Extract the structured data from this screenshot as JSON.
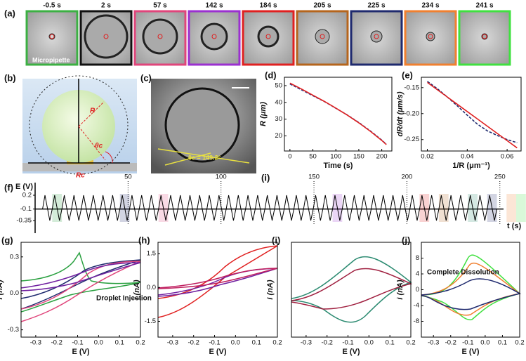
{
  "figure": {
    "a": {
      "label": "(a)",
      "frames": [
        "-0.5 s",
        "2 s",
        "57 s",
        "142 s",
        "184 s",
        "205 s",
        "225 s",
        "234 s",
        "241 s"
      ],
      "pointer": "Micropipette"
    },
    "b": {
      "label": "(b)",
      "radius": "R",
      "angle": "θc",
      "contact": "Rc"
    },
    "c": {
      "label": "(c)",
      "angle_text": "θc = 149.2°"
    },
    "f": {
      "label": "(f)",
      "ylabel": "E (V)",
      "xlabel": "t (s)",
      "inset": "(i)",
      "xlim": [
        0,
        255
      ],
      "xticks": [
        50,
        100,
        150,
        200,
        250
      ],
      "ylim": [
        -0.35,
        0.2
      ],
      "yticks": [
        0.2,
        -0.1,
        -0.35
      ]
    },
    "cv": [
      {
        "label": "(g)",
        "xlabel": "E (V)",
        "ylabel": "i (nA)",
        "xlim": [
          -0.37,
          0.2
        ],
        "ylim": [
          -0.36,
          0.42
        ],
        "xticks": [
          -0.3,
          -0.2,
          -0.1,
          {
            "value": 0,
            "label": "0.0"
          },
          0.1,
          0.2
        ],
        "yticks": [
          -0.3,
          {
            "value": 0,
            "label": "0.0"
          },
          0.3
        ],
        "annotation": "Droplet Injection"
      },
      {
        "label": "(h)",
        "xlabel": "E (V)",
        "ylabel": "i (nA)",
        "xlim": [
          -0.37,
          0.2
        ],
        "ylim": [
          -2.2,
          2.0
        ],
        "xticks": [
          -0.3,
          -0.2,
          -0.1,
          {
            "value": 0,
            "label": "0.0"
          },
          0.1,
          0.2
        ],
        "yticks": [
          -1.5,
          {
            "value": 0,
            "label": "0.0"
          },
          1.5
        ]
      },
      {
        "label": "(i)",
        "xlabel": "E (V)",
        "ylabel": "i (nA)",
        "xlim": [
          -0.37,
          0.2
        ],
        "ylim": [
          -1,
          1
        ],
        "xticks": [
          -0.3,
          -0.2,
          -0.1,
          {
            "value": 0,
            "label": "0.0"
          },
          0.1,
          0.2
        ],
        "yticks": []
      },
      {
        "label": "(j)",
        "xlabel": "E (V)",
        "ylabel": "i (nA)",
        "xlim": [
          -0.37,
          0.2
        ],
        "ylim": [
          -12,
          12
        ],
        "xticks": [
          -0.3,
          -0.2,
          -0.1,
          {
            "value": 0,
            "label": "0.0"
          },
          0.1,
          0.2
        ],
        "yticks": [
          -8,
          -4,
          0,
          4,
          8
        ],
        "annotation": "Complete Dissolution"
      }
    ]
  },
  "chart_data": [
    {
      "type": "line",
      "label": "(d)",
      "xlabel": "Time (s)",
      "ylabel": "R (μm)",
      "x": [
        0,
        25,
        50,
        75,
        100,
        125,
        150,
        175,
        200,
        210
      ],
      "series": [
        {
          "color": "#1f3b8c",
          "values": [
            51,
            47.5,
            44,
            40.5,
            36.5,
            32.5,
            28,
            23,
            17.5,
            15
          ]
        },
        {
          "color": "#e02020",
          "values": [
            51.5,
            48,
            44.3,
            40.6,
            36.6,
            32.4,
            27.8,
            22.8,
            17.3,
            14.8
          ]
        }
      ],
      "xlim": [
        -12,
        222
      ],
      "xticks": [
        0,
        50,
        100,
        150,
        200
      ],
      "ylim": [
        11,
        55
      ],
      "yticks": [
        20,
        30,
        40,
        50
      ]
    },
    {
      "type": "line",
      "label": "(e)",
      "xlabel": "1/R (μm⁻¹)",
      "ylabel": "dR/dt (μm/s)",
      "x": [
        0.02,
        0.025,
        0.03,
        0.035,
        0.04,
        0.045,
        0.05,
        0.055,
        0.06,
        0.065
      ],
      "series": [
        {
          "color": "#1f2a6e",
          "values": [
            -0.138,
            -0.152,
            -0.168,
            -0.185,
            -0.203,
            -0.22,
            -0.233,
            -0.242,
            -0.25,
            -0.256
          ]
        },
        {
          "color": "#e02020",
          "values": [
            -0.14,
            -0.154,
            -0.168,
            -0.182,
            -0.196,
            -0.21,
            -0.224,
            -0.238,
            -0.252,
            -0.266
          ]
        }
      ],
      "xlim": [
        0.017,
        0.067
      ],
      "xticks": [
        0.02,
        0.04,
        0.06
      ],
      "ylim": [
        -0.272,
        -0.13
      ],
      "yticks": [
        -0.15,
        {
          "value": -0.2,
          "label": "-0.20"
        },
        -0.25
      ]
    }
  ]
}
